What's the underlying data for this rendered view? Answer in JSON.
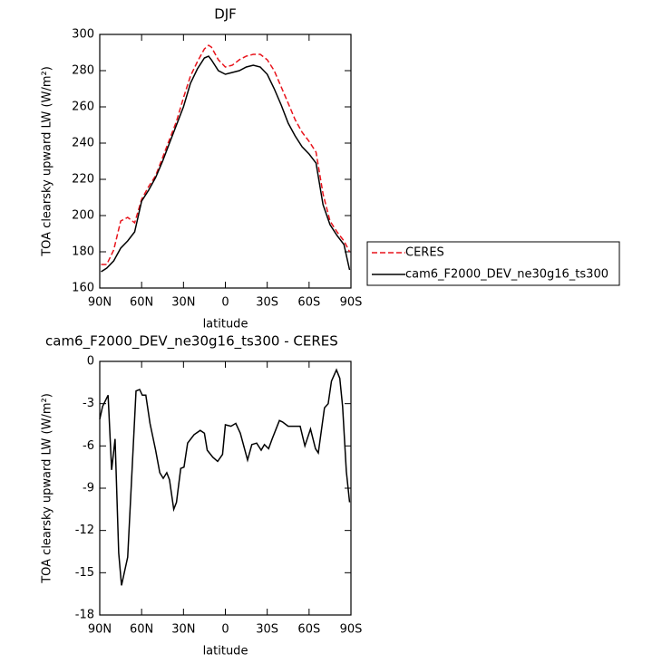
{
  "chart_data": [
    {
      "type": "line",
      "title": "DJF",
      "xlabel": "latitude",
      "ylabel": "TOA clearsky upward LW (W/m²)",
      "x": [
        89,
        85,
        80,
        75,
        70,
        65,
        60,
        55,
        50,
        45,
        40,
        35,
        30,
        25,
        20,
        15,
        12,
        10,
        5,
        0,
        -5,
        -10,
        -15,
        -20,
        -25,
        -30,
        -35,
        -40,
        -45,
        -50,
        -55,
        -60,
        -65,
        -70,
        -75,
        -80,
        -85,
        -89
      ],
      "series": [
        {
          "name": "CERES",
          "color": "#e8141c",
          "line_style": "dashed",
          "values": [
            173,
            173,
            181,
            197,
            199,
            196,
            209,
            216,
            222,
            232,
            242,
            252,
            265,
            277,
            285,
            292,
            294,
            293,
            286,
            282,
            283,
            286,
            288,
            289,
            289,
            286,
            280,
            271,
            262,
            253,
            246,
            241,
            235,
            212,
            197,
            191,
            186,
            180
          ]
        },
        {
          "name": "cam6_F2000_DEV_ne30g16_ts300",
          "color": "#000000",
          "line_style": "solid",
          "values": [
            169,
            171,
            175,
            182,
            186,
            191,
            208,
            214,
            221,
            230,
            240,
            250,
            260,
            273,
            281,
            287,
            288,
            286,
            280,
            278,
            279,
            280,
            282,
            283,
            282,
            278,
            270,
            261,
            251,
            244,
            238,
            234,
            229,
            206,
            195,
            189,
            184,
            170
          ]
        }
      ],
      "xlim": [
        90,
        -90
      ],
      "xticks": [
        {
          "value": 90,
          "label": "90N"
        },
        {
          "value": 60,
          "label": "60N"
        },
        {
          "value": 30,
          "label": "30N"
        },
        0,
        {
          "value": -30,
          "label": "30S"
        },
        {
          "value": -60,
          "label": "60S"
        },
        {
          "value": -90,
          "label": "90S"
        }
      ],
      "ylim": [
        160,
        300
      ],
      "yticks": [
        160,
        180,
        200,
        220,
        240,
        260,
        280,
        300
      ],
      "legend": "right"
    },
    {
      "type": "line",
      "title": "cam6_F2000_DEV_ne30g16_ts300 - CERES",
      "xlabel": "latitude",
      "ylabel": "TOA clearsky upward LW (W/m²)",
      "x": [
        90,
        88,
        84,
        81.5,
        79,
        76.4,
        74.4,
        70,
        64,
        61.4,
        59.5,
        57,
        54,
        50,
        47,
        44.5,
        42,
        40,
        37,
        35,
        32,
        29.6,
        27,
        22.4,
        18,
        15,
        13,
        9,
        5.5,
        2,
        0,
        -4,
        -7.5,
        -10.7,
        -15.9,
        -19,
        -22.4,
        -25.7,
        -28,
        -31,
        -33.5,
        -38.7,
        -41,
        -45,
        -49,
        -53.6,
        -57,
        -61,
        -64.6,
        -66.6,
        -71,
        -73.7,
        -76,
        -79.6,
        -82,
        -84,
        -86.7,
        -89
      ],
      "values": [
        -4.1,
        -3.2,
        -2.4,
        -7.7,
        -5.5,
        -13.6,
        -15.9,
        -13.9,
        -2.1,
        -2.0,
        -2.4,
        -2.4,
        -4.4,
        -6.3,
        -7.9,
        -8.3,
        -7.9,
        -8.4,
        -10.5,
        -10.0,
        -7.6,
        -7.5,
        -5.8,
        -5.2,
        -4.9,
        -5.1,
        -6.3,
        -6.8,
        -7.1,
        -6.6,
        -4.5,
        -4.6,
        -4.4,
        -5.1,
        -7.0,
        -5.9,
        -5.8,
        -6.3,
        -5.9,
        -6.2,
        -5.5,
        -4.2,
        -4.3,
        -4.6,
        -4.6,
        -4.6,
        -6.0,
        -4.8,
        -6.2,
        -6.5,
        -3.3,
        -3.0,
        -1.4,
        -0.6,
        -1.2,
        -3.2,
        -7.8,
        -10.0
      ],
      "color": "#000000",
      "xlim": [
        90,
        -90
      ],
      "xticks": [
        {
          "value": 90,
          "label": "90N"
        },
        {
          "value": 60,
          "label": "60N"
        },
        {
          "value": 30,
          "label": "30N"
        },
        0,
        {
          "value": -30,
          "label": "30S"
        },
        {
          "value": -60,
          "label": "60S"
        },
        {
          "value": -90,
          "label": "90S"
        }
      ],
      "ylim": [
        -18,
        0
      ],
      "yticks": [
        -18,
        -15,
        -12,
        -9,
        -6,
        -3,
        0
      ]
    }
  ]
}
